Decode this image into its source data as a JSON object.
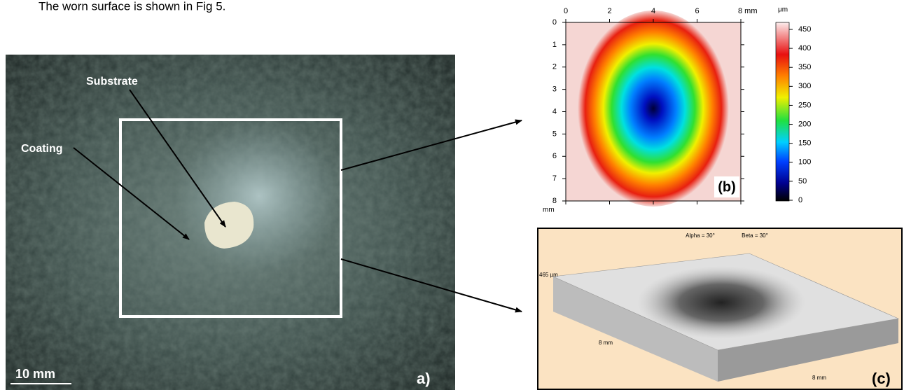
{
  "caption": "The worn surface is shown in Fig 5.",
  "panel_a": {
    "labels": [
      "Substrate",
      "Coating"
    ],
    "scale_bar": "10 mm",
    "tag": "a)"
  },
  "panel_b": {
    "x_ticks": [
      0,
      2,
      4,
      6,
      {
        "value": 8,
        "label": "8 mm"
      }
    ],
    "y_ticks": [
      0,
      1,
      2,
      3,
      4,
      5,
      6,
      7,
      8
    ],
    "y_unit": "mm",
    "colorbar_unit": "μm",
    "colorbar_ticks": [
      0,
      50,
      100,
      150,
      200,
      250,
      300,
      350,
      400,
      450
    ],
    "tag": "(b)"
  },
  "panel_c": {
    "angles": [
      "Alpha = 30°",
      "Beta = 30°"
    ],
    "height_label": "465 µm",
    "x_label": "8 mm",
    "y_label": "8 mm",
    "tag": "(c)"
  }
}
